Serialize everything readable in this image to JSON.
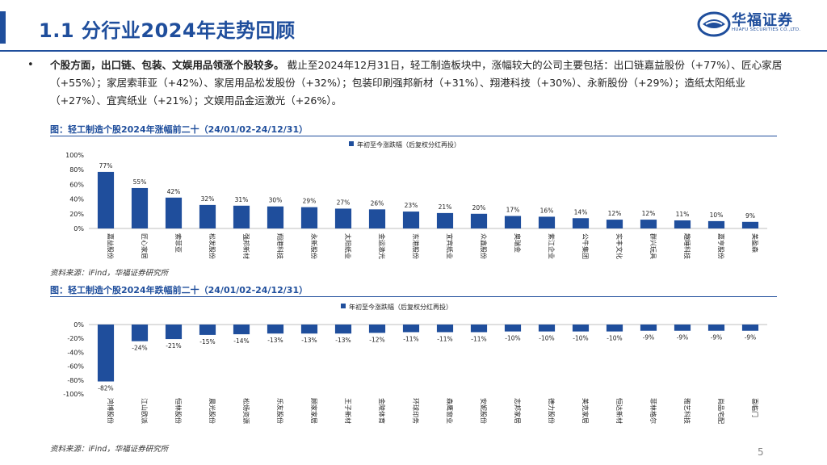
{
  "header": {
    "title": "1.1 分行业2024年走势回顾",
    "logo_text": "华福证券",
    "logo_sub": "HUAFU SECURITIES CO.,LTD."
  },
  "summary": {
    "bold": "个股方面，出口链、包装、文娱用品领涨个股较多。",
    "text": "截止至2024年12月31日，轻工制造板块中，涨幅较大的公司主要包括：出口链嘉益股份（+77%）、匠心家居（+55%）；家居索菲亚（+42%）、家居用品松发股份（+32%）；包装印刷强邦新材（+31%）、翔港科技（+30%）、永新股份（+29%）；造纸太阳纸业（+27%）、宜宾纸业（+21%）；文娱用品金运激光（+26%）。"
  },
  "figures": {
    "top_title": "图：轻工制造个股2024年涨幅前二十（24/01/02-24/12/31）",
    "bottom_title": "图：轻工制造个股2024年跌幅前二十（24/01/02-24/12/31）",
    "source": "资料来源：iFind，华福证券研究所"
  },
  "page_number": "5",
  "colors": {
    "brand": "#1f4e9c",
    "bar": "#1f4e9c"
  },
  "chart_data": [
    {
      "type": "bar",
      "title": "轻工制造个股2024年涨幅前二十（24/01/02-24/12/31）",
      "legend": "年初至今涨跌幅（后复权分红再投）",
      "categories": [
        "嘉益股份",
        "匠心家居",
        "索菲亚",
        "松发股份",
        "强邦新材",
        "翔港科技",
        "永新股份",
        "太阳纸业",
        "金运激光",
        "东港股份",
        "宜宾纸业",
        "众鑫股份",
        "奥瑞金",
        "紫江企业",
        "公牛集团",
        "实丰文化",
        "群兴玩具",
        "趣睡科技",
        "嘉亨股份",
        "美盈森"
      ],
      "values": [
        77,
        55,
        42,
        32,
        31,
        30,
        29,
        27,
        26,
        23,
        21,
        20,
        17,
        16,
        14,
        12,
        12,
        11,
        10,
        9
      ],
      "labels": [
        "77%",
        "55%",
        "42%",
        "32%",
        "31%",
        "30%",
        "29%",
        "27%",
        "26%",
        "23%",
        "21%",
        "20%",
        "17%",
        "16%",
        "14%",
        "12%",
        "12%",
        "11%",
        "10%",
        "9%"
      ],
      "yticks": [
        "0%",
        "20%",
        "40%",
        "60%",
        "80%",
        "100%"
      ],
      "ylim": [
        0,
        100
      ]
    },
    {
      "type": "bar",
      "title": "轻工制造个股2024年跌幅前二十（24/01/02-24/12/31）",
      "legend": "年初至今涨跌幅（后复权分红再投）",
      "categories": [
        "鸿博股份",
        "江山欧派",
        "恒林股份",
        "晨光股份",
        "松炀资源",
        "乐友股份",
        "顾家家居",
        "王子新材",
        "金陵体育",
        "环球印务",
        "森鹰窗业",
        "安妮股份",
        "志邦家居",
        "德力股份",
        "美克家居",
        "恒达新材",
        "菲林格尔",
        "雅艺科技",
        "尚品宅配",
        "喜临门"
      ],
      "values": [
        -82,
        -24,
        -21,
        -15,
        -14,
        -13,
        -13,
        -13,
        -12,
        -11,
        -11,
        -11,
        -10,
        -10,
        -10,
        -10,
        -9,
        -9,
        -9,
        -9
      ],
      "labels": [
        "-82%",
        "-24%",
        "-21%",
        "-15%",
        "-14%",
        "-13%",
        "-13%",
        "-13%",
        "-12%",
        "-11%",
        "-11%",
        "-11%",
        "-10%",
        "-10%",
        "-10%",
        "-10%",
        "-9%",
        "-9%",
        "-9%",
        "-9%"
      ],
      "yticks": [
        "0%",
        "-20%",
        "-40%",
        "-60%",
        "-80%",
        "-100%"
      ],
      "ylim": [
        -100,
        0
      ]
    }
  ]
}
